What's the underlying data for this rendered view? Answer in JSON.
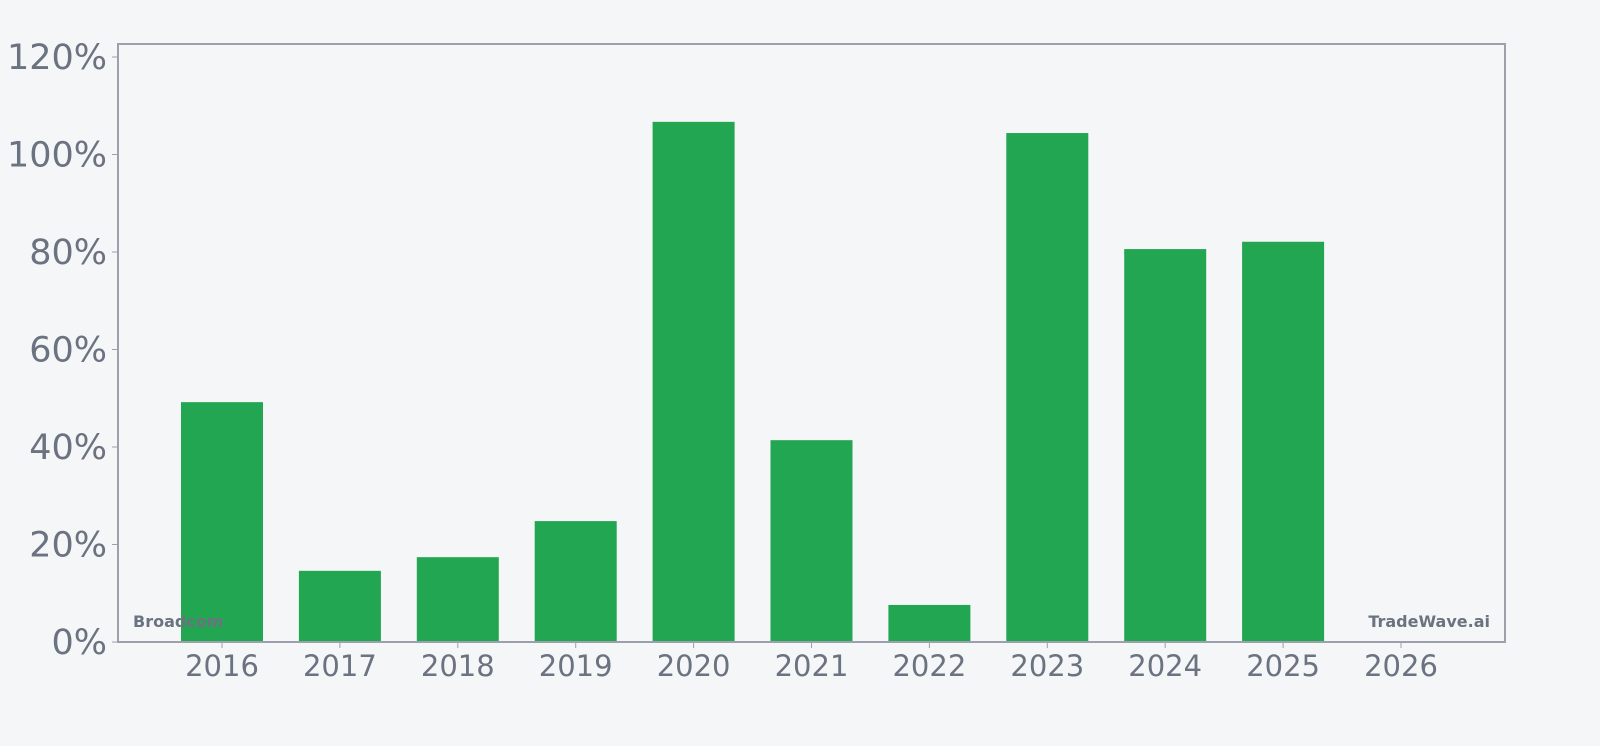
{
  "chart_data": {
    "type": "bar",
    "categories": [
      "2016",
      "2017",
      "2018",
      "2019",
      "2020",
      "2021",
      "2022",
      "2023",
      "2024",
      "2025",
      "2026"
    ],
    "values": [
      49.2,
      14.6,
      17.4,
      24.8,
      106.7,
      41.4,
      7.6,
      104.4,
      80.6,
      82.1,
      null
    ],
    "title": "",
    "xlabel": "",
    "ylabel": "",
    "ylim": [
      0,
      122
    ],
    "yticks": [
      0,
      20,
      40,
      60,
      80,
      100,
      120
    ],
    "ytick_labels": [
      "0%",
      "20%",
      "40%",
      "60%",
      "80%",
      "100%",
      "120%"
    ],
    "grid": false,
    "bar_color": "#22a652",
    "watermark_left": "Broadcom",
    "watermark_right": "TradeWave.ai"
  }
}
